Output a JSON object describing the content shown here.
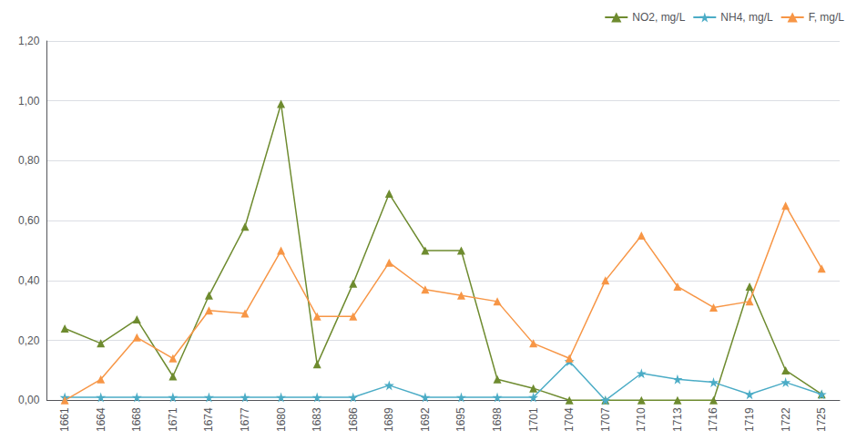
{
  "chart_data": {
    "type": "line",
    "categories": [
      "1661",
      "1664",
      "1668",
      "1671",
      "1674",
      "1677",
      "1680",
      "1683",
      "1686",
      "1689",
      "1692",
      "1695",
      "1698",
      "1701",
      "1704",
      "1707",
      "1710",
      "1713",
      "1716",
      "1719",
      "1722",
      "1725"
    ],
    "series": [
      {
        "name": "NO2, mg/L",
        "color": "#6e8b2f",
        "marker": "triangle",
        "values": [
          0.24,
          0.19,
          0.27,
          0.08,
          0.35,
          0.58,
          0.99,
          0.12,
          0.39,
          0.69,
          0.5,
          0.5,
          0.07,
          0.04,
          0.0,
          0.0,
          0.0,
          0.0,
          0.0,
          0.38,
          0.1,
          0.02
        ]
      },
      {
        "name": "NH4, mg/L",
        "color": "#4bacc6",
        "marker": "star",
        "values": [
          0.01,
          0.01,
          0.01,
          0.01,
          0.01,
          0.01,
          0.01,
          0.01,
          0.01,
          0.05,
          0.01,
          0.01,
          0.01,
          0.01,
          0.13,
          0.0,
          0.09,
          0.07,
          0.06,
          0.02,
          0.06,
          0.02
        ]
      },
      {
        "name": "F, mg/L",
        "color": "#f79646",
        "marker": "triangle",
        "values": [
          0.0,
          0.07,
          0.21,
          0.14,
          0.3,
          0.29,
          0.5,
          0.28,
          0.28,
          0.46,
          0.37,
          0.35,
          0.33,
          0.19,
          0.14,
          0.4,
          0.55,
          0.38,
          0.31,
          0.33,
          0.65,
          0.44
        ]
      }
    ],
    "ylim": [
      0.0,
      1.2
    ],
    "yticks": [
      {
        "value": 0.0,
        "label": "0,00"
      },
      {
        "value": 0.2,
        "label": "0,20"
      },
      {
        "value": 0.4,
        "label": "0,40"
      },
      {
        "value": 0.6,
        "label": "0,60"
      },
      {
        "value": 0.8,
        "label": "0,80"
      },
      {
        "value": 1.0,
        "label": "1,00"
      },
      {
        "value": 1.2,
        "label": "1,20"
      }
    ],
    "grid": true,
    "legend": "upper right"
  }
}
